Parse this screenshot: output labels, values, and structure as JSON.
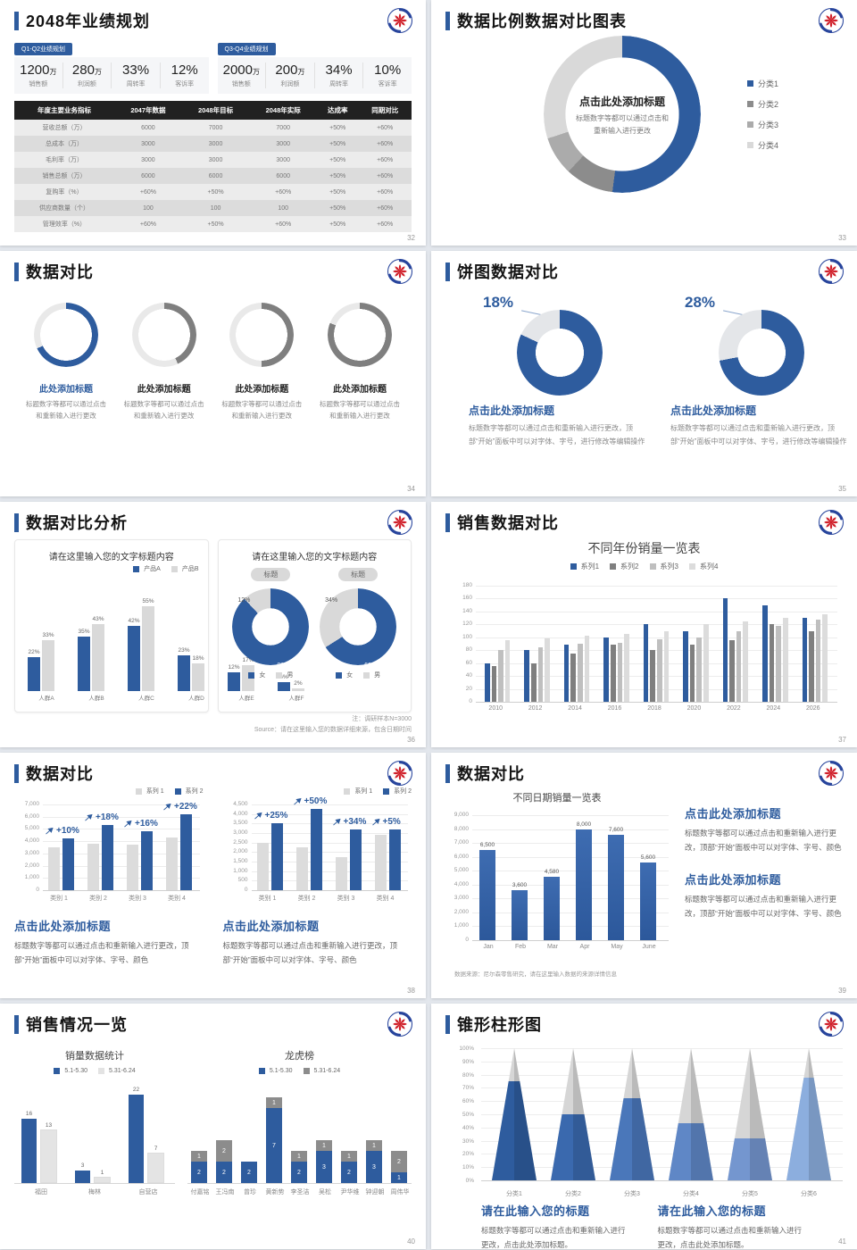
{
  "slides": {
    "s32": {
      "page": "32",
      "title": "2048年业绩规划",
      "groups": [
        {
          "badge": "Q1-Q2业绩规划",
          "stats": [
            {
              "value": "1200",
              "unit": "万",
              "label": "销售额"
            },
            {
              "value": "280",
              "unit": "万",
              "label": "利润额"
            },
            {
              "value": "33%",
              "unit": "",
              "label": "周转率"
            },
            {
              "value": "12%",
              "unit": "",
              "label": "客诉率"
            }
          ]
        },
        {
          "badge": "Q3-Q4业绩规划",
          "stats": [
            {
              "value": "2000",
              "unit": "万",
              "label": "销售额"
            },
            {
              "value": "200",
              "unit": "万",
              "label": "利润额"
            },
            {
              "value": "34%",
              "unit": "",
              "label": "周转率"
            },
            {
              "value": "10%",
              "unit": "",
              "label": "客诉率"
            }
          ]
        }
      ],
      "table": {
        "headers": [
          "年度主要业务指标",
          "2047年数据",
          "2048年目标",
          "2048年实际",
          "达成率",
          "同期对比"
        ],
        "rows": [
          [
            "营收总额（万）",
            "6000",
            "7000",
            "7000",
            "+50%",
            "+60%"
          ],
          [
            "总成本（万）",
            "3000",
            "3000",
            "3000",
            "+50%",
            "+60%"
          ],
          [
            "毛利率（万）",
            "3000",
            "3000",
            "3000",
            "+50%",
            "+60%"
          ],
          [
            "销售总额（万）",
            "6000",
            "6000",
            "6000",
            "+50%",
            "+60%"
          ],
          [
            "复购率（%）",
            "+60%",
            "+50%",
            "+60%",
            "+50%",
            "+60%"
          ],
          [
            "供应商数量（个）",
            "100",
            "100",
            "100",
            "+50%",
            "+60%"
          ],
          [
            "管理效率（%）",
            "+60%",
            "+50%",
            "+60%",
            "+50%",
            "+60%"
          ]
        ]
      }
    },
    "s33": {
      "page": "33",
      "title": "数据比例数据对比图表",
      "chart": {
        "type": "donut",
        "center_title": "点击此处添加标题",
        "center_sub1": "标题数字等都可以通过点击和",
        "center_sub2": "重新输入进行更改",
        "segments": [
          {
            "label": "分类1",
            "value": 52,
            "color": "#2e5c9e"
          },
          {
            "label": "分类2",
            "value": 10,
            "color": "#8c8c8c"
          },
          {
            "label": "分类3",
            "value": 8,
            "color": "#ababab"
          },
          {
            "label": "分类4",
            "value": 30,
            "color": "#d9d9d9"
          }
        ]
      }
    },
    "s34": {
      "page": "34",
      "title": "数据对比",
      "desc": "标题数字等都可以通过点击和重新输入进行更改",
      "gauges": [
        {
          "value": 68,
          "color": "#2e5c9e",
          "title": "此处添加标题",
          "title_color": "#2e5c9e"
        },
        {
          "value": 43,
          "color": "#7f7f7f",
          "title": "此处添加标题",
          "title_color": "#222222"
        },
        {
          "value": 50,
          "color": "#7f7f7f",
          "title": "此处添加标题",
          "title_color": "#222222"
        },
        {
          "value": 81,
          "color": "#7f7f7f",
          "title": "此处添加标题",
          "title_color": "#222222"
        }
      ]
    },
    "s35": {
      "page": "35",
      "title": "饼图数据对比",
      "donuts": [
        {
          "percent": 18,
          "heading": "点击此处添加标题",
          "desc": "标题数字等都可以通过点击和重新输入进行更改，顶部“开始”面板中可以对字体、字号，进行修改等编辑操作"
        },
        {
          "percent": 28,
          "heading": "点击此处添加标题",
          "desc": "标题数字等都可以通过点击和重新输入进行更改，顶部“开始”面板中可以对字体、字号，进行修改等编辑操作"
        }
      ]
    },
    "s36": {
      "page": "36",
      "title": "数据对比分析",
      "left_card": {
        "title": "请在这里输入您的文字标题内容",
        "legend": [
          {
            "label": "产品A",
            "color": "#2e5c9e"
          },
          {
            "label": "产品B",
            "color": "#d9d9d9"
          }
        ],
        "categories": [
          "人群A",
          "人群B",
          "人群C",
          "人群D",
          "人群E",
          "人群F"
        ],
        "series": [
          {
            "name": "产品A",
            "color": "#2e5c9e",
            "values": [
              22,
              35,
              42,
              23,
              12,
              6
            ]
          },
          {
            "name": "产品B",
            "color": "#d9d9d9",
            "values": [
              33,
              43,
              55,
              18,
              17,
              2
            ]
          }
        ],
        "ymax": 60
      },
      "right_card": {
        "title": "请在这里输入您的文字标题内容",
        "pill": "标题",
        "donuts": [
          {
            "main": 88,
            "rest": 12,
            "main_label": "88%",
            "rest_label": "12%"
          },
          {
            "main": 66,
            "rest": 34,
            "main_label": "66%",
            "rest_label": "34%"
          }
        ],
        "legend": [
          {
            "label": "女",
            "color": "#2e5c9e"
          },
          {
            "label": "男",
            "color": "#d9d9d9"
          }
        ]
      },
      "note1": "注：调研样本N=3000",
      "note2": "Source：请在这里输入您的数据详细来源，包含日期时间"
    },
    "s37": {
      "page": "37",
      "title": "销售数据对比",
      "chart_title": "不同年份销量一览表",
      "legend": [
        {
          "label": "系列1",
          "color": "#2e5c9e"
        },
        {
          "label": "系列2",
          "color": "#7f7f7f"
        },
        {
          "label": "系列3",
          "color": "#bfbfbf"
        },
        {
          "label": "系列4",
          "color": "#dcdcdc"
        }
      ],
      "categories": [
        "2010",
        "2012",
        "2014",
        "2016",
        "2018",
        "2020",
        "2022",
        "2024",
        "2026"
      ],
      "series": [
        [
          60,
          80,
          88,
          100,
          120,
          110,
          160,
          150,
          130
        ],
        [
          55,
          60,
          75,
          88,
          80,
          88,
          95,
          120,
          110
        ],
        [
          80,
          85,
          90,
          92,
          97,
          100,
          110,
          118,
          128
        ],
        [
          95,
          98,
          102,
          105,
          110,
          120,
          125,
          130,
          135
        ]
      ],
      "ymax": 180,
      "ystep": 20
    },
    "s38": {
      "page": "38",
      "title": "数据对比",
      "charts": [
        {
          "legend": [
            {
              "label": "系列 1",
              "color": "#d9d9d9"
            },
            {
              "label": "系列 2",
              "color": "#2e5c9e"
            }
          ],
          "categories": [
            "类别 1",
            "类别 2",
            "类别 3",
            "类别 4"
          ],
          "gray": [
            3500,
            3800,
            3700,
            4300
          ],
          "blue": [
            4200,
            5300,
            4800,
            6200
          ],
          "deltas": [
            "+10%",
            "+18%",
            "+16%",
            "+22%"
          ],
          "ymax": 7000,
          "ystep": 1000,
          "heading": "点击此处添加标题",
          "desc": "标题数字等都可以通过点击和重新输入进行更改，顶部“开始”面板中可以对字体、字号、颜色"
        },
        {
          "legend": [
            {
              "label": "系列 1",
              "color": "#d9d9d9"
            },
            {
              "label": "系列 2",
              "color": "#2e5c9e"
            }
          ],
          "categories": [
            "类别 1",
            "类别 2",
            "类别 3",
            "类别 4"
          ],
          "gray": [
            2500,
            2250,
            1750,
            2900
          ],
          "blue": [
            3500,
            4250,
            3200,
            3200
          ],
          "deltas": [
            "+25%",
            "+50%",
            "+34%",
            "+5%"
          ],
          "ymax": 4500,
          "ystep": 500,
          "heading": "点击此处添加标题",
          "desc": "标题数字等都可以通过点击和重新输入进行更改，顶部“开始”面板中可以对字体、字号、颜色"
        }
      ]
    },
    "s39": {
      "page": "39",
      "title": "数据对比",
      "chart_title": "不同日期销量一览表",
      "categories": [
        "Jan",
        "Feb",
        "Mar",
        "Apr",
        "May",
        "June"
      ],
      "values": [
        6500,
        3600,
        4580,
        8000,
        7600,
        5600
      ],
      "labels": [
        "6,500",
        "3,600",
        "4,580",
        "8,000",
        "7,600",
        "5,600"
      ],
      "ymax": 9000,
      "ystep": 1000,
      "source": "数据来源：尼尔森零售研究，请在这里输入数据的来源详情信息",
      "blocks": [
        {
          "heading": "点击此处添加标题",
          "desc": "标题数字等都可以通过点击和重新输入进行更改，顶部“开始”面板中可以对字体、字号、颜色"
        },
        {
          "heading": "点击此处添加标题",
          "desc": "标题数字等都可以通过点击和重新输入进行更改，顶部“开始”面板中可以对字体、字号、颜色"
        }
      ]
    },
    "s40": {
      "page": "40",
      "title": "销售情况一览",
      "left": {
        "title": "销量数据统计",
        "legend": [
          {
            "label": "5.1-5.30",
            "color": "#2e5c9e"
          },
          {
            "label": "5.31-6.24",
            "color": "#e3e3e3"
          }
        ],
        "categories": [
          "福田",
          "梅林",
          "自营店"
        ],
        "series1": [
          16,
          3,
          22
        ],
        "series2": [
          13,
          1,
          7
        ],
        "ymax": 24
      },
      "right": {
        "title": "龙虎榜",
        "legend": [
          {
            "label": "5.1-5.30",
            "color": "#2e5c9e"
          },
          {
            "label": "5.31-6.24",
            "color": "#8c8c8c"
          }
        ],
        "categories": [
          "付嘉铭",
          "王冯南",
          "曾珍",
          "黄新势",
          "李圣洁",
          "吴松",
          "尹华维",
          "钟迎朝",
          "周伟华"
        ],
        "blue": [
          2,
          2,
          2,
          7,
          2,
          3,
          2,
          3,
          1
        ],
        "gray": [
          1,
          2,
          0,
          1,
          1,
          1,
          1,
          1,
          2
        ],
        "ymax": 9
      }
    },
    "s41": {
      "page": "41",
      "title": "锥形柱形图",
      "categories": [
        "分类1",
        "分类2",
        "分类3",
        "分类4",
        "分类5",
        "分类6"
      ],
      "values": [
        75,
        50,
        62,
        43,
        32,
        78
      ],
      "colors": [
        "#2e5c9e",
        "#3a69ae",
        "#4a77ba",
        "#5f87c6",
        "#7496cf",
        "#8caede"
      ],
      "ylabels": [
        "100%",
        "90%",
        "80%",
        "70%",
        "60%",
        "50%",
        "40%",
        "30%",
        "20%",
        "10%",
        "0%"
      ],
      "blocks": [
        {
          "heading": "请在此输入您的标题",
          "desc": "标题数字等都可以通过点击和重新输入进行更改，点击此处添加标题。"
        },
        {
          "heading": "请在此输入您的标题",
          "desc": "标题数字等都可以通过点击和重新输入进行更改，点击此处添加标题。"
        }
      ]
    }
  }
}
